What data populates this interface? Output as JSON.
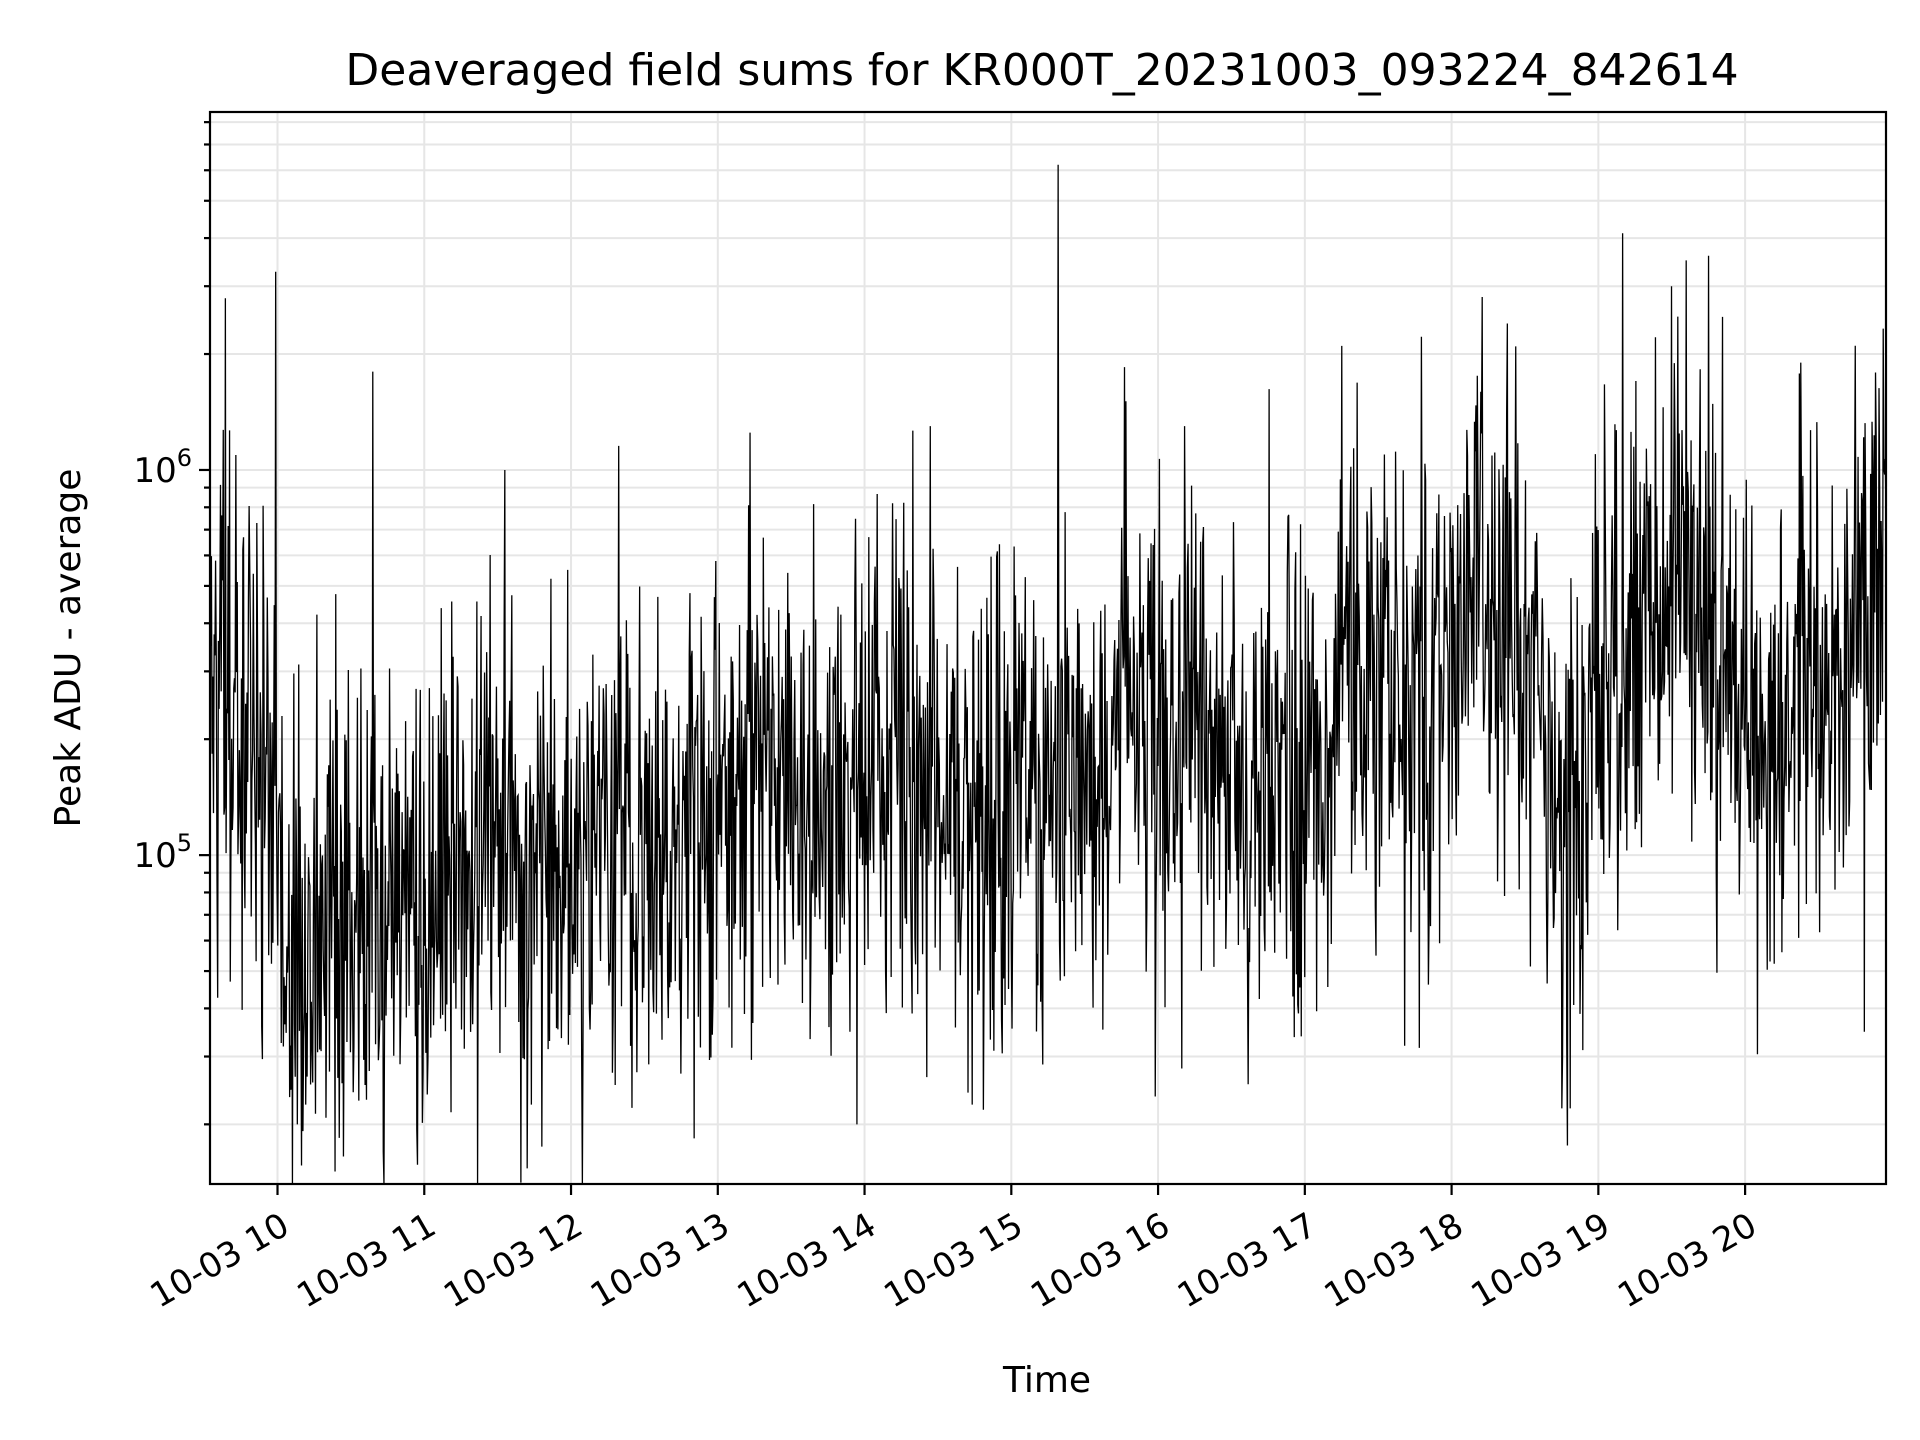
{
  "chart_data": {
    "type": "line",
    "title": "Deaveraged field sums for KR000T_20231003_093224_842614",
    "xlabel": "Time",
    "ylabel": "Peak ADU - average",
    "y_scale": "log",
    "grid": true,
    "grid_minor": true,
    "x_ticks": [
      "10-03 10",
      "10-03 11",
      "10-03 12",
      "10-03 13",
      "10-03 14",
      "10-03 15",
      "10-03 16",
      "10-03 17",
      "10-03 18",
      "10-03 19",
      "10-03 20"
    ],
    "y_ticks": [
      {
        "base": "10",
        "exp": "5",
        "value": 100000
      },
      {
        "base": "10",
        "exp": "6",
        "value": 1000000
      }
    ],
    "xlim_hours": [
      9.54,
      20.96
    ],
    "ylim": [
      14000,
      8500000
    ],
    "series": [
      {
        "color": "#000000",
        "x_hours": [
          9.55,
          9.7,
          9.9,
          10.1,
          10.3,
          10.5,
          10.7,
          10.9,
          11.1,
          11.3,
          11.5,
          11.7,
          11.9,
          12.1,
          12.3,
          12.5,
          12.7,
          12.9,
          13.1,
          13.3,
          13.5,
          13.7,
          13.9,
          14.1,
          14.3,
          14.5,
          14.7,
          14.9,
          15.1,
          15.3,
          15.5,
          15.7,
          15.8,
          15.9,
          16.1,
          16.25,
          16.4,
          16.6,
          16.8,
          17.0,
          17.2,
          17.25,
          17.4,
          17.6,
          17.8,
          18.0,
          18.2,
          18.4,
          18.6,
          18.75,
          18.9,
          19.1,
          19.3,
          19.5,
          19.7,
          19.9,
          20.1,
          20.2,
          20.4,
          20.6,
          20.8,
          20.95
        ],
        "y_typical": [
          350000,
          250000,
          200000,
          75000,
          75000,
          65000,
          65000,
          75000,
          80000,
          90000,
          110000,
          85000,
          90000,
          95000,
          100000,
          100000,
          95000,
          105000,
          150000,
          200000,
          160000,
          130000,
          125000,
          145000,
          160000,
          145000,
          135000,
          140000,
          150000,
          160000,
          170000,
          200000,
          350000,
          180000,
          200000,
          320000,
          150000,
          140000,
          160000,
          180000,
          200000,
          500000,
          300000,
          280000,
          250000,
          300000,
          500000,
          400000,
          250000,
          110000,
          180000,
          350000,
          450000,
          400000,
          500000,
          400000,
          180000,
          170000,
          300000,
          380000,
          420000,
          450000
        ]
      }
    ],
    "spikes": [
      {
        "x_hours": 10.65,
        "y": 1800000
      },
      {
        "x_hours": 11.55,
        "y": 1000000
      },
      {
        "x_hours": 13.22,
        "y": 1250000
      },
      {
        "x_hours": 14.45,
        "y": 1300000
      },
      {
        "x_hours": 15.32,
        "y": 6200000
      },
      {
        "x_hours": 15.77,
        "y": 1850000
      },
      {
        "x_hours": 16.18,
        "y": 1300000
      },
      {
        "x_hours": 17.25,
        "y": 2100000
      },
      {
        "x_hours": 18.38,
        "y": 2400000
      },
      {
        "x_hours": 19.5,
        "y": 3000000
      },
      {
        "x_hours": 19.6,
        "y": 3500000
      },
      {
        "x_hours": 19.75,
        "y": 3600000
      },
      {
        "x_hours": 20.38,
        "y": 1900000
      },
      {
        "x_hours": 18.75,
        "y": 22000
      },
      {
        "x_hours": 17.68,
        "y": 32000
      },
      {
        "x_hours": 10.45,
        "y": 16500
      },
      {
        "x_hours": 10.72,
        "y": 17000
      },
      {
        "x_hours": 11.8,
        "y": 17500
      },
      {
        "x_hours": 13.95,
        "y": 20000
      }
    ]
  }
}
